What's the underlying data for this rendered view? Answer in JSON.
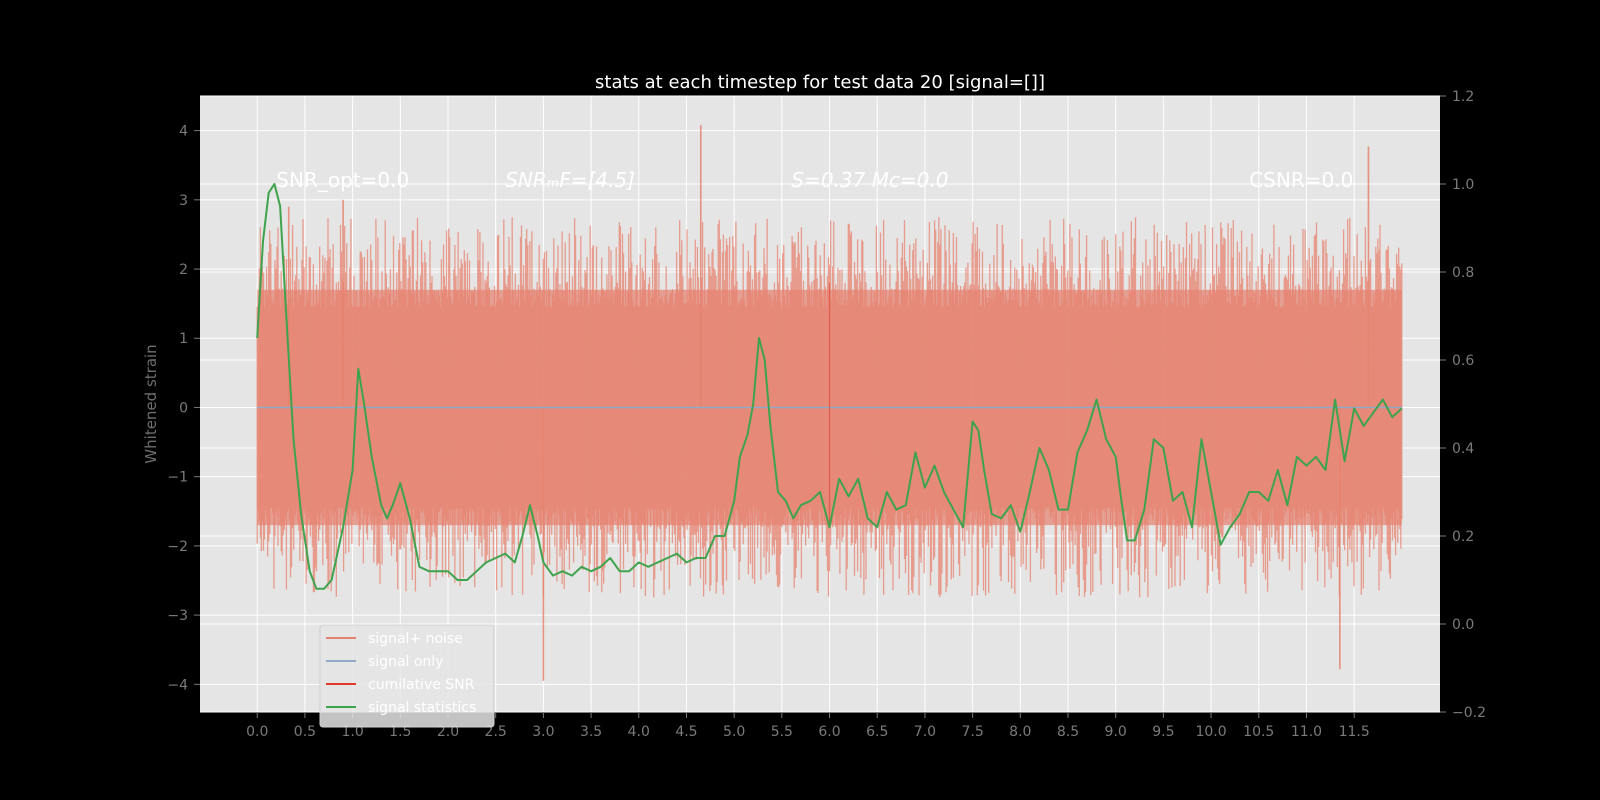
{
  "chart_data": {
    "type": "line",
    "title": "stats at each timestep for test data 20 [signal=[]]",
    "ylabel": "Whitened strain",
    "xlim": [
      -0.6,
      12.4
    ],
    "ylim": [
      -4.4,
      4.5
    ],
    "ylim_right": [
      -0.2,
      1.2
    ],
    "xticks": [
      0.0,
      0.5,
      1.0,
      1.5,
      2.0,
      2.5,
      3.0,
      3.5,
      4.0,
      4.5,
      5.0,
      5.5,
      6.0,
      6.5,
      7.0,
      7.5,
      8.0,
      8.5,
      9.0,
      9.5,
      10.0,
      10.5,
      11.0,
      11.5
    ],
    "xtick_labels": [
      "0.0",
      "0.5",
      "1.0",
      "1.5",
      "2.0",
      "2.5",
      "3.0",
      "3.5",
      "4.0",
      "4.5",
      "5.0",
      "5.5",
      "6.0",
      "6.5",
      "7.0",
      "7.5",
      "8.0",
      "8.5",
      "9.0",
      "9.5",
      "10.0",
      "10.5",
      "11.0",
      "11.5"
    ],
    "yticks": [
      -4,
      -3,
      -2,
      -1,
      0,
      1,
      2,
      3,
      4
    ],
    "ytick_labels": [
      "−4",
      "−3",
      "−2",
      "−1",
      "0",
      "1",
      "2",
      "3",
      "4"
    ],
    "yticks_right": [
      -0.2,
      0.0,
      0.2,
      0.4,
      0.6,
      0.8,
      1.0,
      1.2
    ],
    "ytick_labels_right": [
      "−0.2",
      "0.0",
      "0.2",
      "0.4",
      "0.6",
      "0.8",
      "1.0",
      "1.2"
    ],
    "grid": true,
    "legend_placement": "lower-left",
    "annotations": [
      {
        "x": 0.2,
        "y": 3.3,
        "text": "SNR_opt=0.0",
        "italic": false
      },
      {
        "x": 2.6,
        "y": 3.3,
        "text": "SNRₘF=[4.5]",
        "italic": true
      },
      {
        "x": 5.6,
        "y": 3.3,
        "text": "S=0.37   Mᴄ=0.0",
        "italic": true
      },
      {
        "x": 10.4,
        "y": 3.3,
        "text": "CSNR=0.0",
        "italic": false
      }
    ],
    "series": [
      {
        "name": "signal+ noise",
        "color": "#e5826f",
        "axis": "left",
        "x_range": [
          0.0,
          12.0
        ],
        "typical_envelope": [
          -1.7,
          1.7
        ],
        "notable_peaks": [
          {
            "x": 0.33,
            "y": 2.9
          },
          {
            "x": 0.9,
            "y": 3.0
          },
          {
            "x": 3.0,
            "y": -3.95
          },
          {
            "x": 4.65,
            "y": 4.08
          },
          {
            "x": 11.35,
            "y": -3.78
          },
          {
            "x": 11.65,
            "y": 3.77
          }
        ]
      },
      {
        "name": "signal only",
        "color": "#8fa9c8",
        "axis": "left",
        "x": [
          0.0,
          12.0
        ],
        "y": [
          0.0,
          0.0
        ]
      },
      {
        "name": "cumilative SNR",
        "color": "#e03a2a",
        "axis": "left",
        "x": [
          6.0,
          6.0
        ],
        "y": [
          -1.7,
          1.8
        ]
      },
      {
        "name": "signal statistics",
        "color": "#3fa34d",
        "axis": "right",
        "x": [
          0.0,
          0.06,
          0.12,
          0.18,
          0.24,
          0.3,
          0.38,
          0.46,
          0.55,
          0.62,
          0.7,
          0.78,
          0.9,
          1.0,
          1.06,
          1.12,
          1.2,
          1.3,
          1.36,
          1.42,
          1.5,
          1.6,
          1.7,
          1.8,
          1.9,
          2.0,
          2.1,
          2.2,
          2.3,
          2.4,
          2.5,
          2.6,
          2.7,
          2.78,
          2.86,
          2.94,
          3.0,
          3.1,
          3.2,
          3.3,
          3.4,
          3.5,
          3.6,
          3.7,
          3.8,
          3.9,
          4.0,
          4.1,
          4.2,
          4.3,
          4.4,
          4.5,
          4.6,
          4.7,
          4.8,
          4.9,
          5.0,
          5.06,
          5.14,
          5.2,
          5.26,
          5.32,
          5.38,
          5.46,
          5.54,
          5.62,
          5.7,
          5.8,
          5.9,
          6.0,
          6.1,
          6.2,
          6.3,
          6.4,
          6.5,
          6.6,
          6.7,
          6.8,
          6.9,
          7.0,
          7.1,
          7.2,
          7.3,
          7.4,
          7.5,
          7.56,
          7.62,
          7.7,
          7.8,
          7.9,
          8.0,
          8.1,
          8.2,
          8.3,
          8.4,
          8.5,
          8.6,
          8.7,
          8.8,
          8.9,
          9.0,
          9.06,
          9.12,
          9.2,
          9.3,
          9.4,
          9.5,
          9.6,
          9.7,
          9.8,
          9.9,
          10.0,
          10.1,
          10.2,
          10.3,
          10.4,
          10.5,
          10.6,
          10.7,
          10.8,
          10.9,
          11.0,
          11.1,
          11.2,
          11.3,
          11.4,
          11.5,
          11.6,
          11.7,
          11.8,
          11.9,
          12.0
        ],
        "y": [
          0.65,
          0.87,
          0.98,
          1.0,
          0.95,
          0.72,
          0.42,
          0.25,
          0.12,
          0.08,
          0.08,
          0.1,
          0.22,
          0.35,
          0.58,
          0.5,
          0.38,
          0.27,
          0.24,
          0.27,
          0.32,
          0.24,
          0.13,
          0.12,
          0.12,
          0.12,
          0.1,
          0.1,
          0.12,
          0.14,
          0.15,
          0.16,
          0.14,
          0.2,
          0.27,
          0.2,
          0.14,
          0.11,
          0.12,
          0.11,
          0.13,
          0.12,
          0.13,
          0.15,
          0.12,
          0.12,
          0.14,
          0.13,
          0.14,
          0.15,
          0.16,
          0.14,
          0.15,
          0.15,
          0.2,
          0.2,
          0.28,
          0.38,
          0.43,
          0.5,
          0.65,
          0.6,
          0.45,
          0.3,
          0.28,
          0.24,
          0.27,
          0.28,
          0.3,
          0.22,
          0.33,
          0.29,
          0.33,
          0.24,
          0.22,
          0.3,
          0.26,
          0.27,
          0.39,
          0.31,
          0.36,
          0.3,
          0.26,
          0.22,
          0.46,
          0.44,
          0.35,
          0.25,
          0.24,
          0.27,
          0.21,
          0.3,
          0.4,
          0.35,
          0.26,
          0.26,
          0.39,
          0.44,
          0.51,
          0.42,
          0.38,
          0.28,
          0.19,
          0.19,
          0.26,
          0.42,
          0.4,
          0.28,
          0.3,
          0.22,
          0.42,
          0.3,
          0.18,
          0.22,
          0.25,
          0.3,
          0.3,
          0.28,
          0.35,
          0.27,
          0.38,
          0.36,
          0.38,
          0.35,
          0.51,
          0.37,
          0.49,
          0.45,
          0.48,
          0.51,
          0.47,
          0.49
        ]
      }
    ]
  }
}
